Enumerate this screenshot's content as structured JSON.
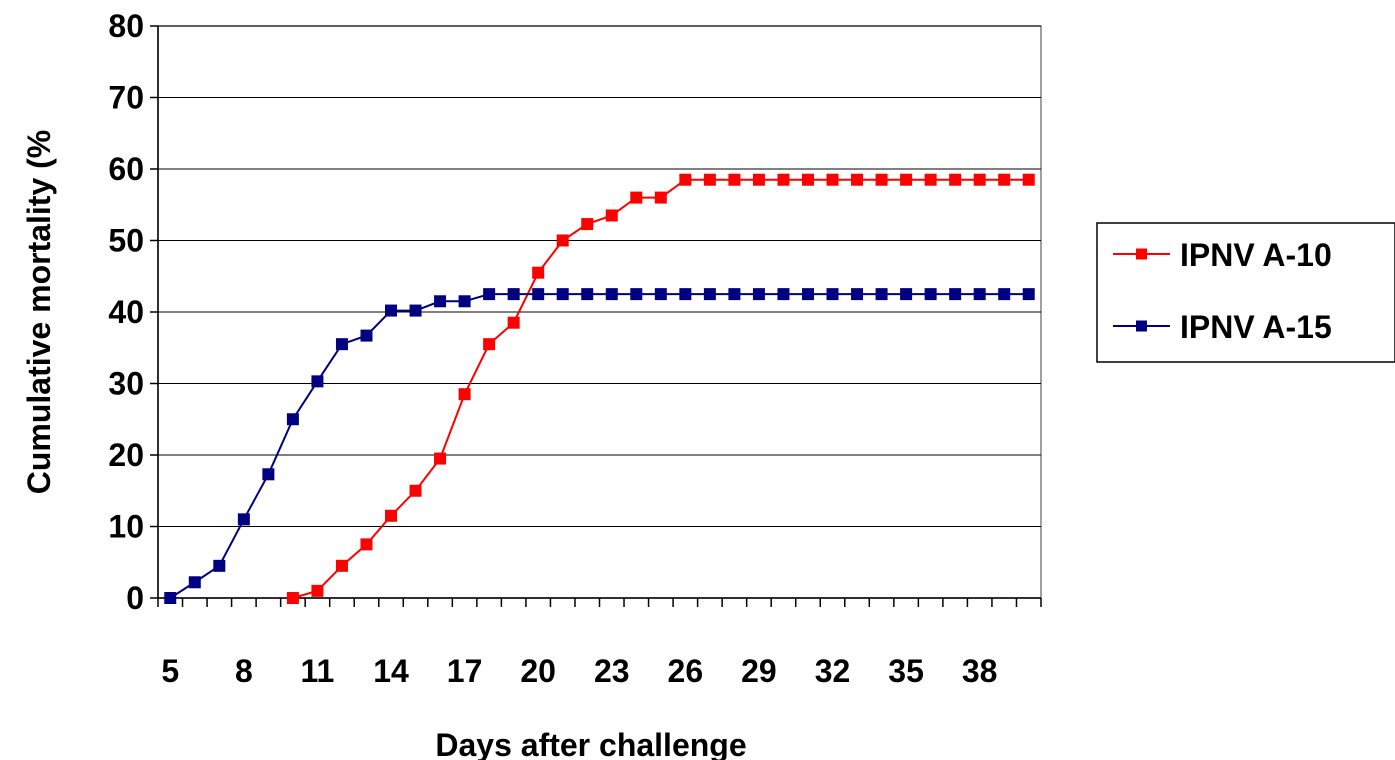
{
  "chart_data": {
    "type": "line",
    "title": "",
    "xlabel": "Days after challenge",
    "ylabel": "Cumulative mortality (%",
    "ylim": [
      0,
      80
    ],
    "y_ticks": [
      0,
      10,
      20,
      30,
      40,
      50,
      60,
      70,
      80
    ],
    "x_range": [
      5,
      40
    ],
    "x_ticks": [
      5,
      8,
      11,
      14,
      17,
      20,
      23,
      26,
      29,
      32,
      35,
      38
    ],
    "grid": "horizontal",
    "legend_position": "right",
    "series": [
      {
        "name": "IPNV A-10",
        "color": "#ff0000",
        "marker": "square",
        "points": [
          [
            10,
            0
          ],
          [
            11,
            1.0
          ],
          [
            12,
            4.5
          ],
          [
            13,
            7.5
          ],
          [
            14,
            11.5
          ],
          [
            15,
            15.0
          ],
          [
            16,
            19.5
          ],
          [
            17,
            28.5
          ],
          [
            18,
            35.5
          ],
          [
            19,
            38.5
          ],
          [
            20,
            45.5
          ],
          [
            21,
            50.0
          ],
          [
            22,
            52.3
          ],
          [
            23,
            53.5
          ],
          [
            24,
            56.0
          ],
          [
            25,
            56.0
          ],
          [
            26,
            58.5
          ],
          [
            27,
            58.5
          ],
          [
            28,
            58.5
          ],
          [
            29,
            58.5
          ],
          [
            30,
            58.5
          ],
          [
            31,
            58.5
          ],
          [
            32,
            58.5
          ],
          [
            33,
            58.5
          ],
          [
            34,
            58.5
          ],
          [
            35,
            58.5
          ],
          [
            36,
            58.5
          ],
          [
            37,
            58.5
          ],
          [
            38,
            58.5
          ],
          [
            39,
            58.5
          ],
          [
            40,
            58.5
          ]
        ]
      },
      {
        "name": "IPNV A-15",
        "color": "#000080",
        "marker": "square",
        "points": [
          [
            5,
            0
          ],
          [
            6,
            2.2
          ],
          [
            7,
            4.5
          ],
          [
            8,
            11.0
          ],
          [
            9,
            17.3
          ],
          [
            10,
            25.0
          ],
          [
            11,
            30.3
          ],
          [
            12,
            35.5
          ],
          [
            13,
            36.7
          ],
          [
            14,
            40.2
          ],
          [
            15,
            40.2
          ],
          [
            16,
            41.5
          ],
          [
            17,
            41.5
          ],
          [
            18,
            42.5
          ],
          [
            19,
            42.5
          ],
          [
            20,
            42.5
          ],
          [
            21,
            42.5
          ],
          [
            22,
            42.5
          ],
          [
            23,
            42.5
          ],
          [
            24,
            42.5
          ],
          [
            25,
            42.5
          ],
          [
            26,
            42.5
          ],
          [
            27,
            42.5
          ],
          [
            28,
            42.5
          ],
          [
            29,
            42.5
          ],
          [
            30,
            42.5
          ],
          [
            31,
            42.5
          ],
          [
            32,
            42.5
          ],
          [
            33,
            42.5
          ],
          [
            34,
            42.5
          ],
          [
            35,
            42.5
          ],
          [
            36,
            42.5
          ],
          [
            37,
            42.5
          ],
          [
            38,
            42.5
          ],
          [
            39,
            42.5
          ],
          [
            40,
            42.5
          ]
        ]
      }
    ]
  }
}
